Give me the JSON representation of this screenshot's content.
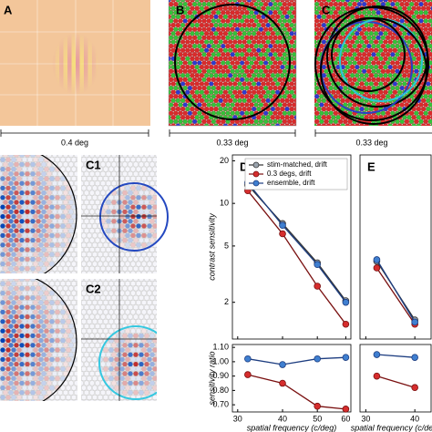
{
  "panels": {
    "a_label": "A",
    "a_scale": "0.4 deg",
    "b_label": "B",
    "b_scale": "0.33 deg",
    "c_label": "C",
    "c_scale": "0.33 deg",
    "c1_label": "C1",
    "c2_label": "C2"
  },
  "chart_data": [
    {
      "type": "line",
      "label": "D",
      "xlabel": "spatial frequency (c/deg)",
      "ylabel": "contrast sensitivity",
      "xscale": "log",
      "yscale": "log",
      "x": [
        32,
        40,
        50,
        60
      ],
      "xlim": [
        29,
        62
      ],
      "xticks": [
        30,
        40,
        50,
        60
      ],
      "ylim": [
        1.1,
        22
      ],
      "yticks": [
        2,
        5,
        10,
        20
      ],
      "legend": "upper right",
      "series": [
        {
          "name": "stim-matched, drift",
          "color": "#9aa3ad",
          "values": [
            13.5,
            7.2,
            3.8,
            2.05
          ]
        },
        {
          "name": "0.3 degs, drift",
          "color": "#d62d2d",
          "values": [
            12.3,
            6.1,
            2.6,
            1.4
          ]
        },
        {
          "name": "ensemble, drift",
          "color": "#3f7fd0",
          "values": [
            14,
            7.0,
            3.7,
            2.0
          ]
        }
      ],
      "ratio": {
        "ylabel": "sensitivity ratio",
        "ylim": [
          0.65,
          1.12
        ],
        "yticks": [
          {
            "value": 0.7,
            "label": "0.70"
          },
          {
            "value": 0.8,
            "label": "0.80"
          },
          {
            "value": 0.9,
            "label": "0.90"
          },
          {
            "value": 1.0,
            "label": "1.00"
          },
          {
            "value": 1.1,
            "label": "1.10"
          }
        ],
        "series": [
          {
            "color": "#d62d2d",
            "values": [
              0.91,
              0.85,
              0.69,
              0.67
            ]
          },
          {
            "color": "#3f7fd0",
            "values": [
              1.02,
              0.98,
              1.02,
              1.03
            ]
          }
        ]
      }
    },
    {
      "type": "line",
      "label": "E",
      "xlabel": "spatial frequency (c/deg)",
      "xscale": "log",
      "yscale": "log",
      "x": [
        32,
        40
      ],
      "xlim": [
        29,
        44
      ],
      "xticks": [
        30,
        40
      ],
      "ylim": [
        1.1,
        22
      ],
      "series": [
        {
          "color": "#9aa3ad",
          "values": [
            3.9,
            1.5
          ]
        },
        {
          "color": "#d62d2d",
          "values": [
            3.5,
            1.4
          ]
        },
        {
          "color": "#3f7fd0",
          "values": [
            4.0,
            1.45
          ]
        }
      ],
      "ratio": {
        "ylim": [
          0.65,
          1.12
        ],
        "series": [
          {
            "color": "#d62d2d",
            "values": [
              0.9,
              0.82
            ]
          },
          {
            "color": "#3f7fd0",
            "values": [
              1.05,
              1.03
            ]
          }
        ]
      }
    }
  ]
}
